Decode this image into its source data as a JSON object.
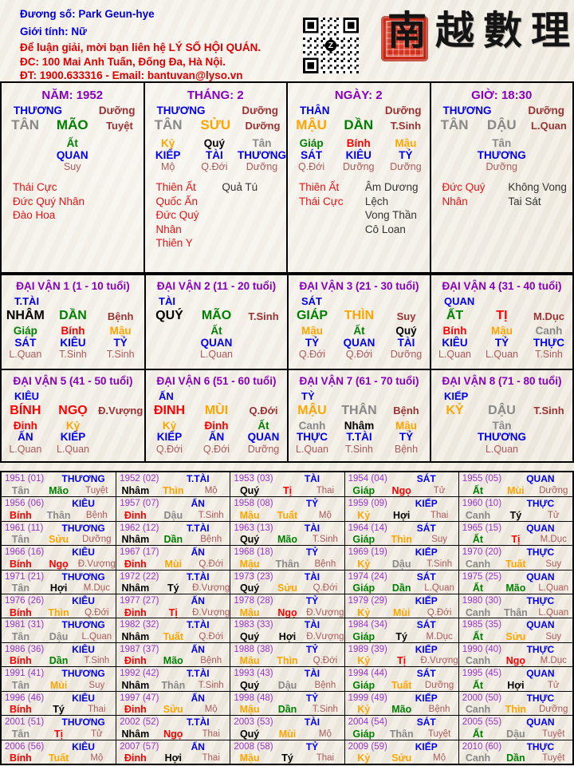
{
  "header": {
    "name_line": "Đương số: Park Geun-hye",
    "gender_line": "Giới tính:  Nữ",
    "contact1": "Để luận giải, mời bạn liên hệ LÝ SỐ HỘI QUÁN.",
    "contact2": "ĐC: 100 Mai Anh Tuấn, Đống Đa, Hà Nội.",
    "contact3": "ĐT: 1900.633316 - Email: bantuvan@lyso.vn",
    "calligraphy": "南越數理",
    "qr_center_letter": "Z"
  },
  "colors": {
    "blue": "#0000ee",
    "purple": "#8800bb",
    "year": "#9933cc",
    "maroon": "#993333",
    "rose": "#aa5a5a",
    "star_red": "#e41414",
    "star_black": "#333333",
    "kim": "#888888",
    "moc": "#008000",
    "thuy": "#000000",
    "hoa": "#ff0000",
    "tho": "#ffa500"
  },
  "pillars": [
    {
      "key": "nam",
      "title": "NĂM: 1952",
      "top_left": "THƯƠNG",
      "top_right": "Dưỡng",
      "can": "TÂN",
      "can_e": "kim",
      "chi": "MÃO",
      "chi_e": "moc",
      "state": "Tuyệt",
      "stems_layout": "center",
      "stems": [
        [
          "Ất",
          "moc",
          "QUAN",
          "Suy"
        ]
      ],
      "stars_red": [
        "Thái Cực",
        "Đức Quý Nhân",
        "Đào Hoa"
      ],
      "stars_black": []
    },
    {
      "key": "thang",
      "title": "THÁNG: 2",
      "top_left": "THƯƠNG",
      "top_right": "Dưỡng",
      "can": "TÂN",
      "can_e": "kim",
      "chi": "SỬU",
      "chi_e": "tho",
      "state": "Dưỡng",
      "stems_layout": "thirds",
      "stems": [
        [
          "Kỷ",
          "tho",
          "KIẾP",
          "Mộ"
        ],
        [
          "Quý",
          "thuy",
          "TÀI",
          "Q.Đới"
        ],
        [
          "Tân",
          "kim",
          "THƯƠNG",
          "Dưỡng"
        ]
      ],
      "stars_red": [
        "Thiên Ất",
        "Quốc Ấn",
        "Đức Quý Nhân",
        "Thiên Y"
      ],
      "stars_black": [
        "Quả Tú"
      ]
    },
    {
      "key": "ngay",
      "title": "NGÀY: 2",
      "top_left": "THÂN",
      "top_right": "Dưỡng",
      "can": "MẬU",
      "can_e": "tho",
      "chi": "DẦN",
      "chi_e": "moc",
      "state": "T.Sinh",
      "stems_layout": "thirds",
      "stems": [
        [
          "Giáp",
          "moc",
          "SÁT",
          "Q.Đới"
        ],
        [
          "Bính",
          "hoa",
          "KIÊU",
          "Dưỡng"
        ],
        [
          "Mậu",
          "tho",
          "TỶ",
          "Dưỡng"
        ]
      ],
      "stars_red": [
        "Thiên Ất",
        "Thái Cực"
      ],
      "stars_black": [
        "Âm Dương Lệch",
        "Vong Thần",
        "Cô Loan"
      ]
    },
    {
      "key": "gio",
      "title": "GIỜ: 18:30",
      "top_left": "THƯƠNG",
      "top_right": "Dưỡng",
      "can": "TÂN",
      "can_e": "kim",
      "chi": "DẬU",
      "chi_e": "kim",
      "state": "L.Quan",
      "stems_layout": "center",
      "stems": [
        [
          "Tân",
          "kim",
          "THƯƠNG",
          "Dưỡng"
        ]
      ],
      "stars_red": [
        "Đức Quý Nhân"
      ],
      "stars_black": [
        "Không Vong",
        "Tai Sát"
      ]
    }
  ],
  "daivan": [
    {
      "key": "dv1",
      "title": "ĐẠI VẬN 1 (1 - 10 tuổi)",
      "than": "T.TÀI",
      "can": "NHÂM",
      "can_e": "thuy",
      "chi": "DẦN",
      "chi_e": "moc",
      "state": "Bệnh",
      "stems_layout": "thirds",
      "stems": [
        [
          "Giáp",
          "moc",
          "SÁT",
          "L.Quan"
        ],
        [
          "Bính",
          "hoa",
          "KIÊU",
          "T.Sinh"
        ],
        [
          "Mậu",
          "tho",
          "TỶ",
          "T.Sinh"
        ]
      ]
    },
    {
      "key": "dv2",
      "title": "ĐẠI VẬN 2 (11 - 20 tuổi)",
      "than": "TÀI",
      "can": "QUÝ",
      "can_e": "thuy",
      "chi": "MÃO",
      "chi_e": "moc",
      "state": "T.Sinh",
      "stems_layout": "center",
      "stems": [
        [
          "Ất",
          "moc",
          "QUAN",
          "L.Quan"
        ]
      ]
    },
    {
      "key": "dv3",
      "title": "ĐẠI VẬN 3 (21 - 30 tuổi)",
      "than": "SÁT",
      "can": "GIÁP",
      "can_e": "moc",
      "chi": "THÌN",
      "chi_e": "tho",
      "state": "Suy",
      "stems_layout": "thirds",
      "stems": [
        [
          "Mậu",
          "tho",
          "TỶ",
          "Q.Đới"
        ],
        [
          "Ất",
          "moc",
          "QUAN",
          "Q.Đới"
        ],
        [
          "Quý",
          "thuy",
          "TÀI",
          "Dưỡng"
        ]
      ]
    },
    {
      "key": "dv4",
      "title": "ĐẠI VẬN 4 (31 - 40 tuổi)",
      "than": "QUAN",
      "can": "ẤT",
      "can_e": "moc",
      "chi": "TỊ",
      "chi_e": "hoa",
      "state": "M.Dục",
      "stems_layout": "thirds",
      "stems": [
        [
          "Bính",
          "hoa",
          "KIÊU",
          "L.Quan"
        ],
        [
          "Mậu",
          "tho",
          "TỶ",
          "L.Quan"
        ],
        [
          "Canh",
          "kim",
          "THỰC",
          "T.Sinh"
        ]
      ]
    },
    {
      "key": "dv5",
      "title": "ĐẠI VẬN 5 (41 - 50 tuổi)",
      "than": "KIÊU",
      "can": "BÍNH",
      "can_e": "hoa",
      "chi": "NGỌ",
      "chi_e": "hoa",
      "state": "Đ.Vượng",
      "stems_layout": "thirds",
      "stems": [
        [
          "Đinh",
          "hoa",
          "ẤN",
          "L.Quan"
        ],
        [
          "Kỷ",
          "tho",
          "KIẾP",
          "L.Quan"
        ]
      ]
    },
    {
      "key": "dv6",
      "title": "ĐẠI VẬN 6 (51 - 60 tuổi)",
      "than": "ẤN",
      "can": "ĐINH",
      "can_e": "hoa",
      "chi": "MÙI",
      "chi_e": "tho",
      "state": "Q.Đới",
      "stems_layout": "thirds",
      "stems": [
        [
          "Kỷ",
          "tho",
          "KIẾP",
          "Q.Đới"
        ],
        [
          "Đinh",
          "hoa",
          "ẤN",
          "Q.Đới"
        ],
        [
          "Ất",
          "moc",
          "QUAN",
          "Dưỡng"
        ]
      ]
    },
    {
      "key": "dv7",
      "title": "ĐẠI VẬN 7 (61 - 70 tuổi)",
      "than": "TỶ",
      "can": "MẬU",
      "can_e": "tho",
      "chi": "THÂN",
      "chi_e": "kim",
      "state": "Bệnh",
      "stems_layout": "thirds",
      "stems": [
        [
          "Canh",
          "kim",
          "THỰC",
          "L.Quan"
        ],
        [
          "Nhâm",
          "thuy",
          "T.TÀI",
          "T.Sinh"
        ],
        [
          "Mậu",
          "tho",
          "TỶ",
          "Bệnh"
        ]
      ]
    },
    {
      "key": "dv8",
      "title": "ĐẠI VẬN 8 (71 - 80 tuổi)",
      "than": "KIẾP",
      "can": "KỶ",
      "can_e": "tho",
      "chi": "DẬU",
      "chi_e": "kim",
      "state": "T.Sinh",
      "stems_layout": "center",
      "stems": [
        [
          "Tân",
          "kim",
          "THƯƠNG",
          "L.Quan"
        ]
      ]
    }
  ],
  "year_table": {
    "rows": [
      [
        [
          "1951 (01)",
          "THƯƠNG",
          "Tân",
          "kim",
          "Mão",
          "moc",
          "Tuyệt"
        ],
        [
          "1952 (02)",
          "T.TÀI",
          "Nhâm",
          "thuy",
          "Thìn",
          "tho",
          "Mộ"
        ],
        [
          "1953 (03)",
          "TÀI",
          "Quý",
          "thuy",
          "Tị",
          "hoa",
          "Thai"
        ],
        [
          "1954 (04)",
          "SÁT",
          "Giáp",
          "moc",
          "Ngọ",
          "hoa",
          "Tử"
        ],
        [
          "1955 (05)",
          "QUAN",
          "Ất",
          "moc",
          "Mùi",
          "tho",
          "Dưỡng"
        ]
      ],
      [
        [
          "1956 (06)",
          "KIÊU",
          "Bính",
          "hoa",
          "Thân",
          "kim",
          "Bệnh"
        ],
        [
          "1957 (07)",
          "ẤN",
          "Đinh",
          "hoa",
          "Dậu",
          "kim",
          "T.Sinh"
        ],
        [
          "1958 (08)",
          "TỶ",
          "Mậu",
          "tho",
          "Tuất",
          "tho",
          "Mộ"
        ],
        [
          "1959 (09)",
          "KIẾP",
          "Kỷ",
          "tho",
          "Hợi",
          "thuy",
          "Thai"
        ],
        [
          "1960 (10)",
          "THỰC",
          "Canh",
          "kim",
          "Tý",
          "thuy",
          "Tử"
        ]
      ],
      [
        [
          "1961 (11)",
          "THƯƠNG",
          "Tân",
          "kim",
          "Sửu",
          "tho",
          "Dưỡng"
        ],
        [
          "1962 (12)",
          "T.TÀI",
          "Nhâm",
          "thuy",
          "Dần",
          "moc",
          "Bệnh"
        ],
        [
          "1963 (13)",
          "TÀI",
          "Quý",
          "thuy",
          "Mão",
          "moc",
          "T.Sinh"
        ],
        [
          "1964 (14)",
          "SÁT",
          "Giáp",
          "moc",
          "Thìn",
          "tho",
          "Suy"
        ],
        [
          "1965 (15)",
          "QUAN",
          "Ất",
          "moc",
          "Tị",
          "hoa",
          "M.Dục"
        ]
      ],
      [
        [
          "1966 (16)",
          "KIÊU",
          "Bính",
          "hoa",
          "Ngọ",
          "hoa",
          "Đ.Vượng"
        ],
        [
          "1967 (17)",
          "ẤN",
          "Đinh",
          "hoa",
          "Mùi",
          "tho",
          "Q.Đới"
        ],
        [
          "1968 (18)",
          "TỶ",
          "Mậu",
          "tho",
          "Thân",
          "kim",
          "Bệnh"
        ],
        [
          "1969 (19)",
          "KIẾP",
          "Kỷ",
          "tho",
          "Dậu",
          "kim",
          "T.Sinh"
        ],
        [
          "1970 (20)",
          "THỰC",
          "Canh",
          "kim",
          "Tuất",
          "tho",
          "Suy"
        ]
      ],
      [
        [
          "1971 (21)",
          "THƯƠNG",
          "Tân",
          "kim",
          "Hợi",
          "thuy",
          "M.Dục"
        ],
        [
          "1972 (22)",
          "T.TÀI",
          "Nhâm",
          "thuy",
          "Tý",
          "thuy",
          "Đ.Vượng"
        ],
        [
          "1973 (23)",
          "TÀI",
          "Quý",
          "thuy",
          "Sửu",
          "tho",
          "Q.Đới"
        ],
        [
          "1974 (24)",
          "SÁT",
          "Giáp",
          "moc",
          "Dần",
          "moc",
          "L.Quan"
        ],
        [
          "1975 (25)",
          "QUAN",
          "Ất",
          "moc",
          "Mão",
          "moc",
          "L.Quan"
        ]
      ],
      [
        [
          "1976 (26)",
          "KIÊU",
          "Bính",
          "hoa",
          "Thìn",
          "tho",
          "Q.Đới"
        ],
        [
          "1977 (27)",
          "ẤN",
          "Đinh",
          "hoa",
          "Tị",
          "hoa",
          "Đ.Vượng"
        ],
        [
          "1978 (28)",
          "TỶ",
          "Mậu",
          "tho",
          "Ngọ",
          "hoa",
          "Đ.Vượng"
        ],
        [
          "1979 (29)",
          "KIẾP",
          "Kỷ",
          "tho",
          "Mùi",
          "tho",
          "Q.Đới"
        ],
        [
          "1980 (30)",
          "THỰC",
          "Canh",
          "kim",
          "Thân",
          "kim",
          "L.Quan"
        ]
      ],
      [
        [
          "1981 (31)",
          "THƯƠNG",
          "Tân",
          "kim",
          "Dậu",
          "kim",
          "L.Quan"
        ],
        [
          "1982 (32)",
          "T.TÀI",
          "Nhâm",
          "thuy",
          "Tuất",
          "tho",
          "Q.Đới"
        ],
        [
          "1983 (33)",
          "TÀI",
          "Quý",
          "thuy",
          "Hợi",
          "thuy",
          "Đ.Vượng"
        ],
        [
          "1984 (34)",
          "SÁT",
          "Giáp",
          "moc",
          "Tý",
          "thuy",
          "M.Dục"
        ],
        [
          "1985 (35)",
          "QUAN",
          "Ất",
          "moc",
          "Sửu",
          "tho",
          "Suy"
        ]
      ],
      [
        [
          "1986 (36)",
          "KIÊU",
          "Bính",
          "hoa",
          "Dần",
          "moc",
          "T.Sinh"
        ],
        [
          "1987 (37)",
          "ẤN",
          "Đinh",
          "hoa",
          "Mão",
          "moc",
          "Bệnh"
        ],
        [
          "1988 (38)",
          "TỶ",
          "Mậu",
          "tho",
          "Thìn",
          "tho",
          "Q.Đới"
        ],
        [
          "1989 (39)",
          "KIẾP",
          "Kỷ",
          "tho",
          "Tị",
          "hoa",
          "Đ.Vượng"
        ],
        [
          "1990 (40)",
          "THỰC",
          "Canh",
          "kim",
          "Ngọ",
          "hoa",
          "M.Dục"
        ]
      ],
      [
        [
          "1991 (41)",
          "THƯƠNG",
          "Tân",
          "kim",
          "Mùi",
          "tho",
          "Suy"
        ],
        [
          "1992 (42)",
          "T.TÀI",
          "Nhâm",
          "thuy",
          "Thân",
          "kim",
          "T.Sinh"
        ],
        [
          "1993 (43)",
          "TÀI",
          "Quý",
          "thuy",
          "Dậu",
          "kim",
          "Bệnh"
        ],
        [
          "1994 (44)",
          "SÁT",
          "Giáp",
          "moc",
          "Tuất",
          "tho",
          "Dưỡng"
        ],
        [
          "1995 (45)",
          "QUAN",
          "Ất",
          "moc",
          "Hợi",
          "thuy",
          "Tử"
        ]
      ],
      [
        [
          "1996 (46)",
          "KIÊU",
          "Bính",
          "hoa",
          "Tý",
          "thuy",
          "Thai"
        ],
        [
          "1997 (47)",
          "ẤN",
          "Đinh",
          "hoa",
          "Sửu",
          "tho",
          "Mộ"
        ],
        [
          "1998 (48)",
          "TỶ",
          "Mậu",
          "tho",
          "Dần",
          "moc",
          "T.Sinh"
        ],
        [
          "1999 (49)",
          "KIẾP",
          "Kỷ",
          "tho",
          "Mão",
          "moc",
          "Bệnh"
        ],
        [
          "2000 (50)",
          "THỰC",
          "Canh",
          "kim",
          "Thìn",
          "tho",
          "Dưỡng"
        ]
      ],
      [
        [
          "2001 (51)",
          "THƯƠNG",
          "Tân",
          "kim",
          "Tị",
          "hoa",
          "Tử"
        ],
        [
          "2002 (52)",
          "T.TÀI",
          "Nhâm",
          "thuy",
          "Ngọ",
          "hoa",
          "Thai"
        ],
        [
          "2003 (53)",
          "TÀI",
          "Quý",
          "thuy",
          "Mùi",
          "tho",
          "Mộ"
        ],
        [
          "2004 (54)",
          "SÁT",
          "Giáp",
          "moc",
          "Thân",
          "kim",
          "Tuyệt"
        ],
        [
          "2005 (55)",
          "QUAN",
          "Ất",
          "moc",
          "Dậu",
          "kim",
          "Tuyệt"
        ]
      ],
      [
        [
          "2006 (56)",
          "KIÊU",
          "Bính",
          "hoa",
          "Tuất",
          "tho",
          "Mộ"
        ],
        [
          "2007 (57)",
          "ẤN",
          "Đinh",
          "hoa",
          "Hợi",
          "thuy",
          "Thai"
        ],
        [
          "2008 (58)",
          "TỶ",
          "Mậu",
          "tho",
          "Tý",
          "thuy",
          "Thai"
        ],
        [
          "2009 (59)",
          "KIẾP",
          "Kỷ",
          "tho",
          "Sửu",
          "tho",
          "Mộ"
        ],
        [
          "2010 (60)",
          "THỰC",
          "Canh",
          "kim",
          "Dần",
          "moc",
          "Tuyệt"
        ]
      ]
    ]
  }
}
